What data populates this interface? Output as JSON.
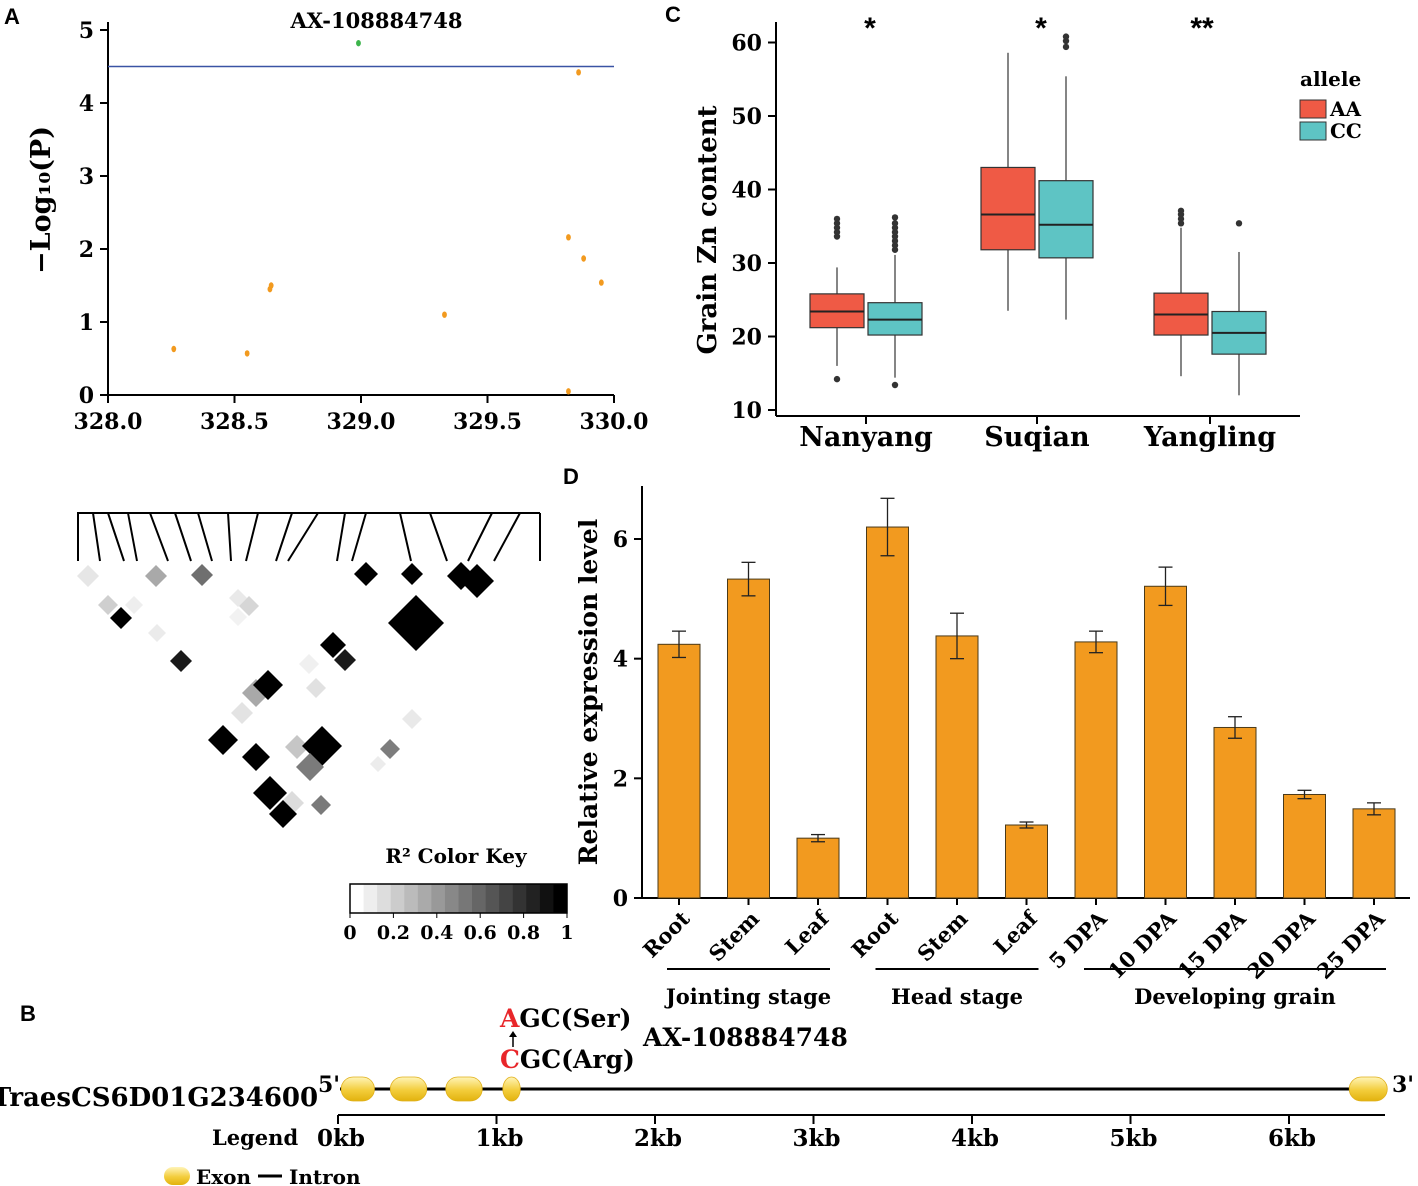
{
  "panel_labels": {
    "a": "A",
    "b": "B",
    "c": "C",
    "d": "D"
  },
  "chart_data": [
    {
      "id": "A",
      "type": "scatter",
      "title": "",
      "xlabel": "",
      "ylabel": "−Log₁₀(P)",
      "xlim": [
        328.0,
        330.0
      ],
      "ylim": [
        0,
        5
      ],
      "xticks": [
        "328.0",
        "328.5",
        "329.0",
        "329.5",
        "330.0"
      ],
      "yticks": [
        "0",
        "1",
        "2",
        "3",
        "4",
        "5"
      ],
      "threshold": 4.5,
      "threshold_color": "#3a53a4",
      "highlight_label": "AX-108884748",
      "points": [
        {
          "x": 328.26,
          "y": 0.63,
          "color": "#f29a1f"
        },
        {
          "x": 328.55,
          "y": 0.57,
          "color": "#f29a1f"
        },
        {
          "x": 328.64,
          "y": 1.45,
          "color": "#f29a1f"
        },
        {
          "x": 328.645,
          "y": 1.5,
          "color": "#f29a1f"
        },
        {
          "x": 328.99,
          "y": 4.82,
          "color": "#3cb44b"
        },
        {
          "x": 329.33,
          "y": 1.1,
          "color": "#f29a1f"
        },
        {
          "x": 329.82,
          "y": 2.16,
          "color": "#f29a1f"
        },
        {
          "x": 329.82,
          "y": 0.05,
          "color": "#f29a1f"
        },
        {
          "x": 329.86,
          "y": 4.42,
          "color": "#f29a1f"
        },
        {
          "x": 329.88,
          "y": 1.87,
          "color": "#f29a1f"
        },
        {
          "x": 329.95,
          "y": 1.54,
          "color": "#f29a1f"
        }
      ]
    },
    {
      "id": "C",
      "type": "box",
      "title": "",
      "xlabel": "",
      "ylabel": "Grain Zn content",
      "ylim": [
        10,
        63
      ],
      "yticks": [
        "10",
        "20",
        "30",
        "40",
        "50",
        "60"
      ],
      "categories": [
        "Nanyang",
        "Suqian",
        "Yangling"
      ],
      "significance": [
        "*",
        "*",
        "**"
      ],
      "legend_title": "allele",
      "legend_position": "top-right",
      "series": [
        {
          "name": "AA",
          "color": "#ef5a45",
          "boxes": [
            {
              "min": 16.0,
              "q1": 21.2,
              "median": 23.4,
              "q3": 25.8,
              "max": 29.4,
              "outliers": [
                14.2,
                33.6,
                34.2,
                34.8,
                35.4,
                36.0
              ]
            },
            {
              "min": 23.5,
              "q1": 31.8,
              "median": 36.6,
              "q3": 43.0,
              "max": 58.6,
              "outliers": []
            },
            {
              "min": 14.6,
              "q1": 20.2,
              "median": 23.0,
              "q3": 25.9,
              "max": 34.8,
              "outliers": [
                35.4,
                36.0,
                36.6,
                37.1
              ]
            }
          ]
        },
        {
          "name": "CC",
          "color": "#5ec4c4",
          "boxes": [
            {
              "min": 14.4,
              "q1": 20.2,
              "median": 22.3,
              "q3": 24.6,
              "max": 31.1,
              "outliers": [
                13.4,
                31.8,
                32.4,
                33.0,
                33.6,
                34.2,
                34.8,
                35.4,
                36.2
              ]
            },
            {
              "min": 22.3,
              "q1": 30.7,
              "median": 35.2,
              "q3": 41.2,
              "max": 55.4,
              "outliers": [
                59.4,
                60.2,
                60.8
              ]
            },
            {
              "min": 12.0,
              "q1": 17.6,
              "median": 20.5,
              "q3": 23.4,
              "max": 31.5,
              "outliers": [
                35.4
              ]
            }
          ]
        }
      ]
    },
    {
      "id": "D",
      "type": "bar",
      "title": "",
      "xlabel": "",
      "ylabel": "Relative expression level",
      "ylim": [
        0,
        6.9
      ],
      "yticks": [
        "0",
        "2",
        "4",
        "6"
      ],
      "bar_color": "#f29a1f",
      "categories": [
        "Root",
        "Stem",
        "Leaf",
        "Root",
        "Stem",
        "Leaf",
        "5 DPA",
        "10 DPA",
        "15 DPA",
        "20 DPA",
        "25 DPA"
      ],
      "values": [
        4.24,
        5.33,
        1.0,
        6.2,
        4.38,
        1.22,
        4.28,
        5.21,
        2.85,
        1.73,
        1.49
      ],
      "errors": [
        0.22,
        0.28,
        0.06,
        0.48,
        0.38,
        0.05,
        0.18,
        0.32,
        0.18,
        0.07,
        0.1
      ],
      "groups": [
        {
          "label": "Jointing stage",
          "from": 0,
          "to": 2
        },
        {
          "label": "Head stage",
          "from": 3,
          "to": 5
        },
        {
          "label": "Developing grain",
          "from": 6,
          "to": 10
        }
      ]
    }
  ],
  "ld_plot": {
    "color_key_title": "R² Color Key",
    "color_key_ticks": [
      "0",
      "0.2",
      "0.4",
      "0.6",
      "0.8",
      "1"
    ]
  },
  "gene_model": {
    "gene_name": "TraesCS6D01G234600",
    "five_prime": "5'",
    "three_prime": "3'",
    "snp_name": "AX-108884748",
    "ref_codon_letter": "A",
    "ref_codon_rest": "GC(Ser)",
    "alt_codon_letter": "C",
    "alt_codon_rest": "GC(Arg)",
    "codon_highlight_color": "#e8262a",
    "exon_color": "#f3cd3c",
    "axis_ticks": [
      "0kb",
      "1kb",
      "2kb",
      "3kb",
      "4kb",
      "5kb",
      "6kb"
    ],
    "axis_max_kb": 6.6,
    "legend_label": "Legend",
    "legend_exon": "Exon",
    "legend_intron": "Intron",
    "exons_kb": [
      [
        0.02,
        0.23
      ],
      [
        0.33,
        0.56
      ],
      [
        0.68,
        0.91
      ],
      [
        1.04,
        1.15
      ],
      [
        6.38,
        6.62
      ]
    ]
  }
}
